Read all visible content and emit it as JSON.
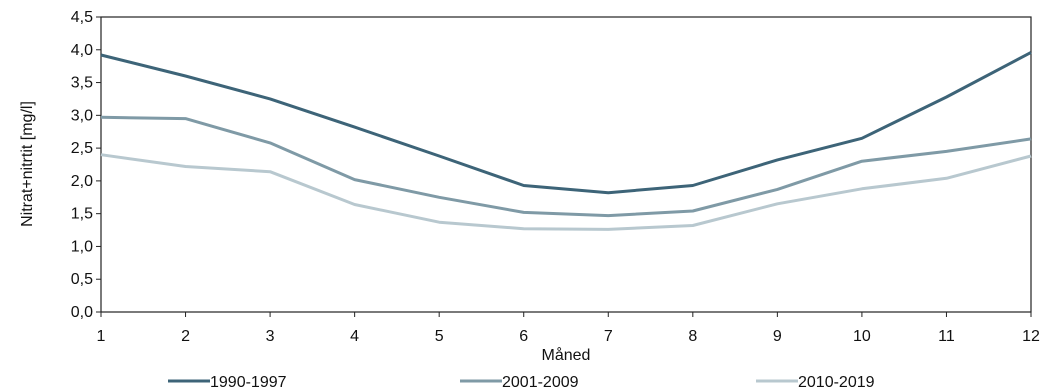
{
  "chart_data": {
    "type": "line",
    "xlabel": "Måned",
    "ylabel": "Nitrat+nitrtit [mg/l]",
    "x": [
      1,
      2,
      3,
      4,
      5,
      6,
      7,
      8,
      9,
      10,
      11,
      12
    ],
    "x_tick_labels": [
      "1",
      "2",
      "3",
      "4",
      "5",
      "6",
      "7",
      "8",
      "9",
      "10",
      "11",
      "12"
    ],
    "ylim": [
      0,
      4.5
    ],
    "y_tick_labels": [
      "0,0",
      "0,5",
      "1,0",
      "1,5",
      "2,0",
      "2,5",
      "3,0",
      "3,5",
      "4,0",
      "4,5"
    ],
    "grid": false,
    "legend_position": "bottom",
    "series": [
      {
        "name": "1990-1997",
        "color": "#3d6478",
        "values": [
          3.92,
          3.6,
          3.25,
          2.82,
          2.38,
          1.93,
          1.82,
          1.93,
          2.32,
          2.65,
          3.28,
          3.96
        ]
      },
      {
        "name": "2001-2009",
        "color": "#7f9aa6",
        "values": [
          2.97,
          2.95,
          2.58,
          2.02,
          1.75,
          1.52,
          1.47,
          1.54,
          1.87,
          2.3,
          2.45,
          2.64
        ]
      },
      {
        "name": "2010-2019",
        "color": "#b8c8cf",
        "values": [
          2.4,
          2.22,
          2.14,
          1.64,
          1.37,
          1.27,
          1.26,
          1.32,
          1.65,
          1.88,
          2.04,
          2.38
        ]
      }
    ]
  }
}
